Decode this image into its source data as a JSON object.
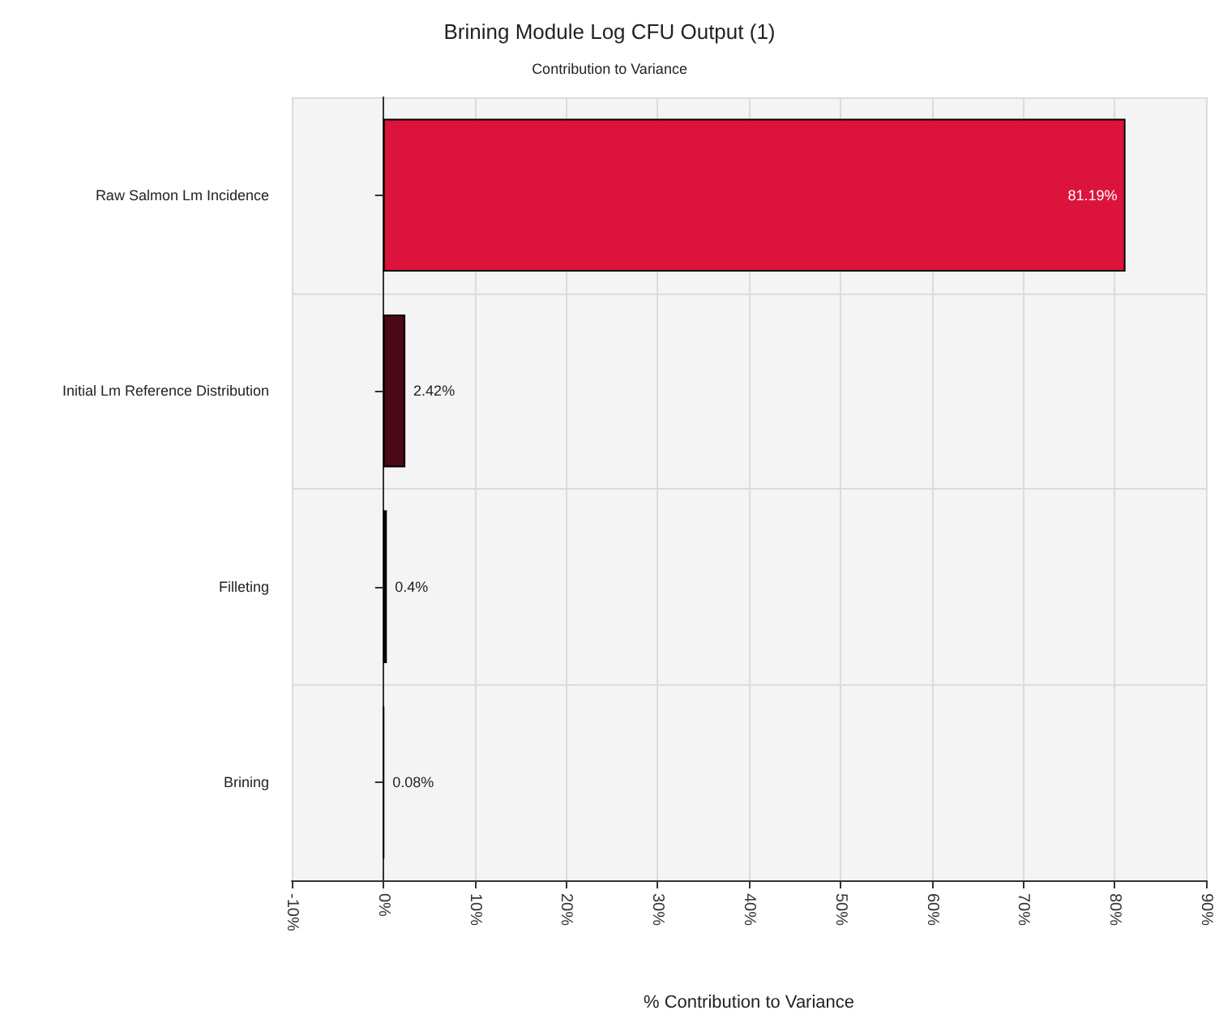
{
  "chart_data": {
    "type": "bar",
    "orientation": "horizontal",
    "title": "Brining Module Log CFU Output (1)",
    "subtitle": "Contribution to Variance",
    "xlabel": "% Contribution to Variance",
    "categories": [
      "Raw Salmon Lm Incidence",
      "Initial Lm Reference Distribution",
      "Filleting",
      "Brining"
    ],
    "values": [
      81.19,
      2.42,
      0.4,
      0.08
    ],
    "colors": [
      "#dc143c",
      "#4a0a18",
      "#3a0010",
      "#000000"
    ],
    "value_labels": [
      "81.19%",
      "2.42%",
      "0.4%",
      "0.08%"
    ],
    "xlim": [
      -10,
      90
    ],
    "xticks": [
      {
        "value": -10,
        "label": "-10%"
      },
      {
        "value": 0,
        "label": "0%"
      },
      {
        "value": 10,
        "label": "10%"
      },
      {
        "value": 20,
        "label": "20%"
      },
      {
        "value": 30,
        "label": "30%"
      },
      {
        "value": 40,
        "label": "40%"
      },
      {
        "value": 50,
        "label": "50%"
      },
      {
        "value": 60,
        "label": "60%"
      },
      {
        "value": 70,
        "label": "70%"
      },
      {
        "value": 80,
        "label": "80%"
      },
      {
        "value": 90,
        "label": "90%"
      }
    ],
    "grid": true
  }
}
